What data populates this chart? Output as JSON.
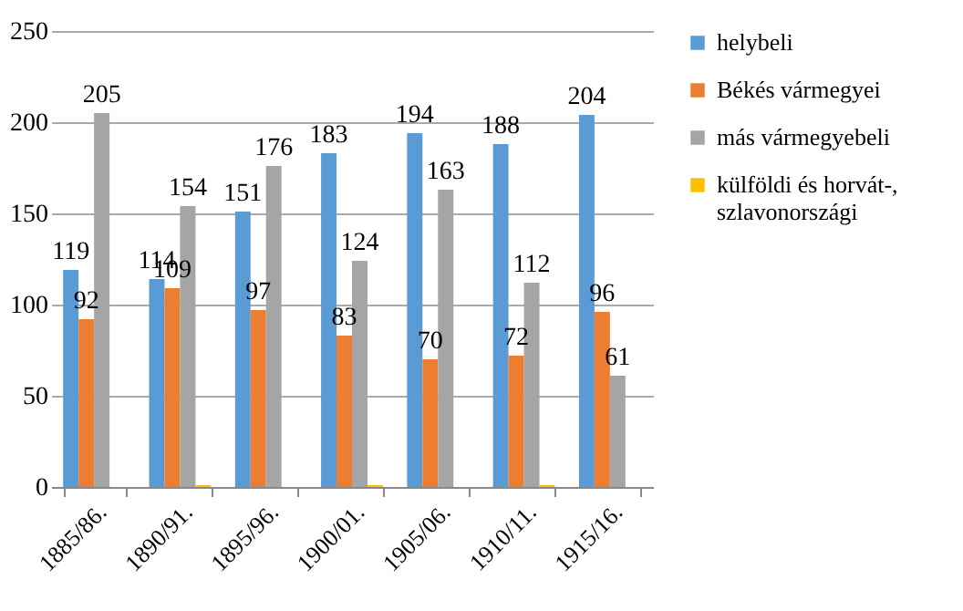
{
  "chart_data": {
    "type": "bar",
    "categories": [
      "1885/86.",
      "1890/91.",
      "1895/96.",
      "1900/01.",
      "1905/06.",
      "1910/11.",
      "1915/16."
    ],
    "series": [
      {
        "name": "helybeli",
        "color": "#5b9bd5",
        "values": [
          119,
          114,
          151,
          183,
          194,
          188,
          204
        ],
        "value_labels": [
          "119",
          "114",
          "151",
          "183",
          "194",
          "188",
          "204"
        ]
      },
      {
        "name": "Békés vármegyei",
        "color": "#ed7d31",
        "values": [
          92,
          109,
          97,
          83,
          70,
          72,
          96
        ],
        "value_labels": [
          "92",
          "109",
          "97",
          "83",
          "70",
          "72",
          "96"
        ]
      },
      {
        "name": "más vármegyebeli",
        "color": "#a5a5a5",
        "values": [
          205,
          154,
          176,
          124,
          163,
          112,
          61
        ],
        "value_labels": [
          "205",
          "154",
          "176",
          "124",
          "163",
          "112",
          "61"
        ]
      },
      {
        "name": "külföldi és horvát-, szlavonországi",
        "color": "#ffc000",
        "values": [
          0,
          1,
          0,
          1,
          0,
          1,
          0
        ],
        "value_labels": [
          null,
          null,
          null,
          null,
          null,
          null,
          null
        ]
      }
    ],
    "ylim": [
      0,
      250
    ],
    "yticks": [
      0,
      50,
      100,
      150,
      200,
      250
    ],
    "grid": "y",
    "legend": "right"
  }
}
